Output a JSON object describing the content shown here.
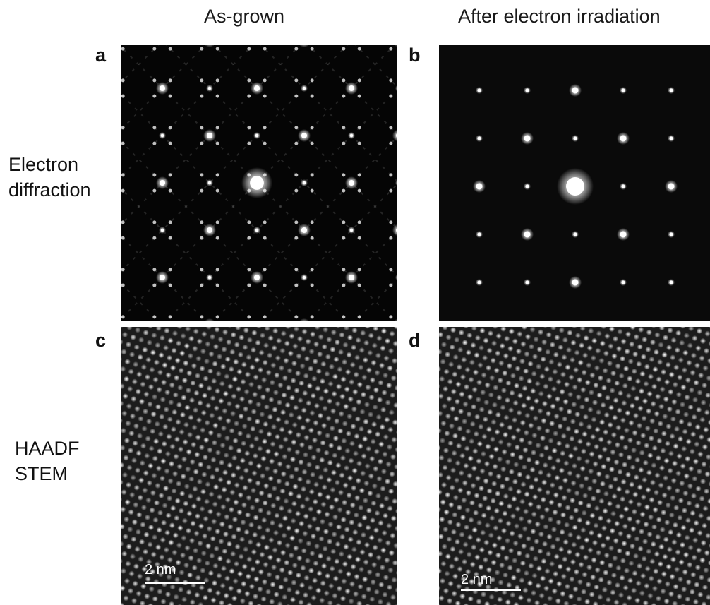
{
  "columns": {
    "left_title": "As-grown",
    "right_title": "After electron irradiation"
  },
  "rows": {
    "top_label_line1": "Electron",
    "top_label_line2": "diffraction",
    "bottom_label_line1": "HAADF",
    "bottom_label_line2": "STEM"
  },
  "panels": {
    "a": {
      "letter": "a"
    },
    "b": {
      "letter": "b"
    },
    "c": {
      "letter": "c",
      "scale_bar": "2 nm"
    },
    "d": {
      "letter": "d",
      "scale_bar": "2 nm"
    }
  },
  "colors": {
    "background": "#ffffff",
    "image_background": "#000000",
    "spot": "#ffffff"
  }
}
